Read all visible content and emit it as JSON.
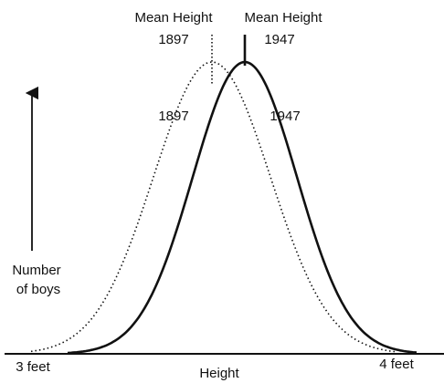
{
  "means": [
    {
      "label": "Mean Height",
      "year": "1897"
    },
    {
      "label": "Mean Height",
      "year": "1947"
    }
  ],
  "curves": [
    {
      "label": "1897"
    },
    {
      "label": "1947"
    }
  ],
  "y_axis_label": [
    "Number",
    "of boys"
  ],
  "x_axis": {
    "label": "Height",
    "start": "3 feet",
    "end": "4 feet"
  }
}
